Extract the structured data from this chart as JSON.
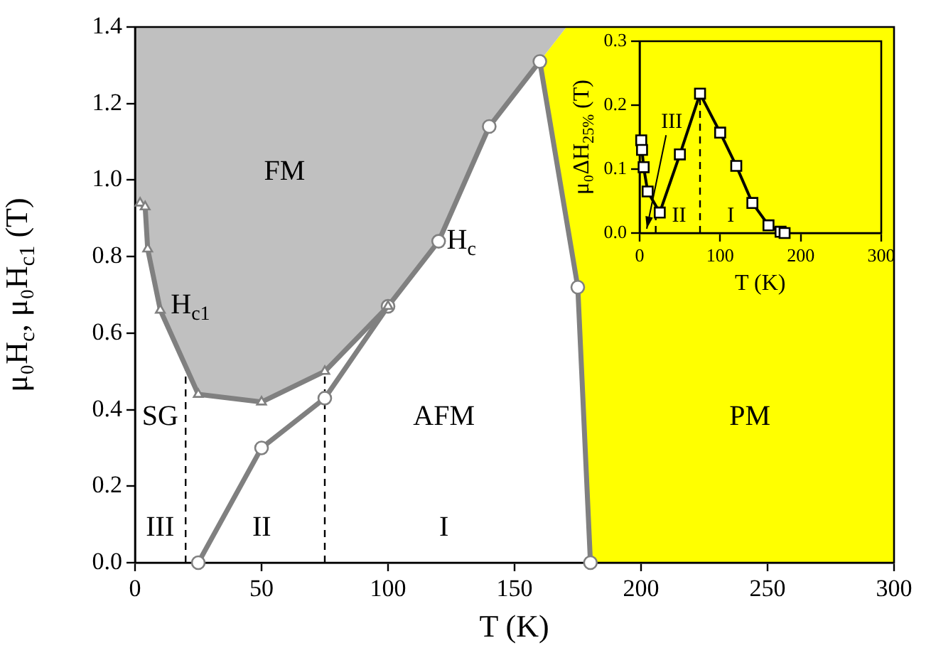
{
  "chart_data": [
    {
      "type": "line",
      "xlabel": "T (K)",
      "ylabel": "μ₀H$_{c}$, μ₀H$_{c1}$ (T)",
      "xlim": [
        0,
        300
      ],
      "xticks": [
        0,
        50,
        100,
        150,
        200,
        250,
        300
      ],
      "ylim": [
        0,
        1.4
      ],
      "yticks": [
        {
          "value": 0,
          "label": "0.0"
        },
        {
          "value": 0.2,
          "label": "0.2"
        },
        {
          "value": 0.4,
          "label": "0.4"
        },
        {
          "value": 0.6,
          "label": "0.6"
        },
        {
          "value": 0.8,
          "label": "0.8"
        },
        {
          "value": 1.0,
          "label": "1.0"
        },
        {
          "value": 1.2,
          "label": "1.2"
        },
        {
          "value": 1.4,
          "label": "1.4"
        }
      ],
      "series": [
        {
          "color": "#808080",
          "marker": "triangle",
          "x": [
            2,
            4,
            5,
            10,
            25,
            50,
            75,
            100
          ],
          "values": [
            0.94,
            0.93,
            0.82,
            0.66,
            0.44,
            0.42,
            0.5,
            0.67
          ]
        },
        {
          "color": "#808080",
          "marker": "circle",
          "x": [
            25,
            50,
            75,
            100,
            120,
            140,
            160,
            175,
            180
          ],
          "values": [
            0,
            0.3,
            0.43,
            0.67,
            0.84,
            1.14,
            1.31,
            0.72,
            0
          ]
        }
      ],
      "ref_lines": [
        {
          "axis": "x",
          "value": 20,
          "line_style": "dashed"
        },
        {
          "axis": "x",
          "value": 75,
          "line_style": "dashed"
        }
      ],
      "annotations": [
        "FM",
        "H$_{c1}$",
        "H$_{c}$",
        "SG",
        "AFM",
        "PM",
        "III",
        "II",
        "I"
      ],
      "grid": false,
      "legend": false
    },
    {
      "type": "line",
      "xlabel": "T (K)",
      "ylabel": "μ₀ΔH$_{25%}$ (T)",
      "xlim": [
        0,
        300
      ],
      "xticks": [
        0,
        100,
        200,
        300
      ],
      "ylim": [
        0,
        0.3
      ],
      "yticks": [
        {
          "value": 0,
          "label": "0.0"
        },
        {
          "value": 0.1,
          "label": "0.1"
        },
        {
          "value": 0.2,
          "label": "0.2"
        },
        {
          "value": 0.3,
          "label": "0.3"
        }
      ],
      "series": [
        {
          "color": "#000000",
          "marker": "square",
          "x": [
            2,
            3,
            5,
            10,
            25,
            50,
            75,
            100,
            120,
            140,
            160,
            175,
            180
          ],
          "values": [
            0.145,
            0.13,
            0.103,
            0.065,
            0.032,
            0.123,
            0.218,
            0.157,
            0.105,
            0.047,
            0.012,
            0.002,
            0
          ]
        }
      ],
      "ref_lines": [
        {
          "axis": "x",
          "value": 20,
          "line_style": "dashed"
        },
        {
          "axis": "x",
          "value": 75,
          "line_style": "dashed"
        }
      ],
      "annotations": [
        "III",
        "II",
        "I"
      ],
      "grid": false,
      "legend": false
    }
  ]
}
